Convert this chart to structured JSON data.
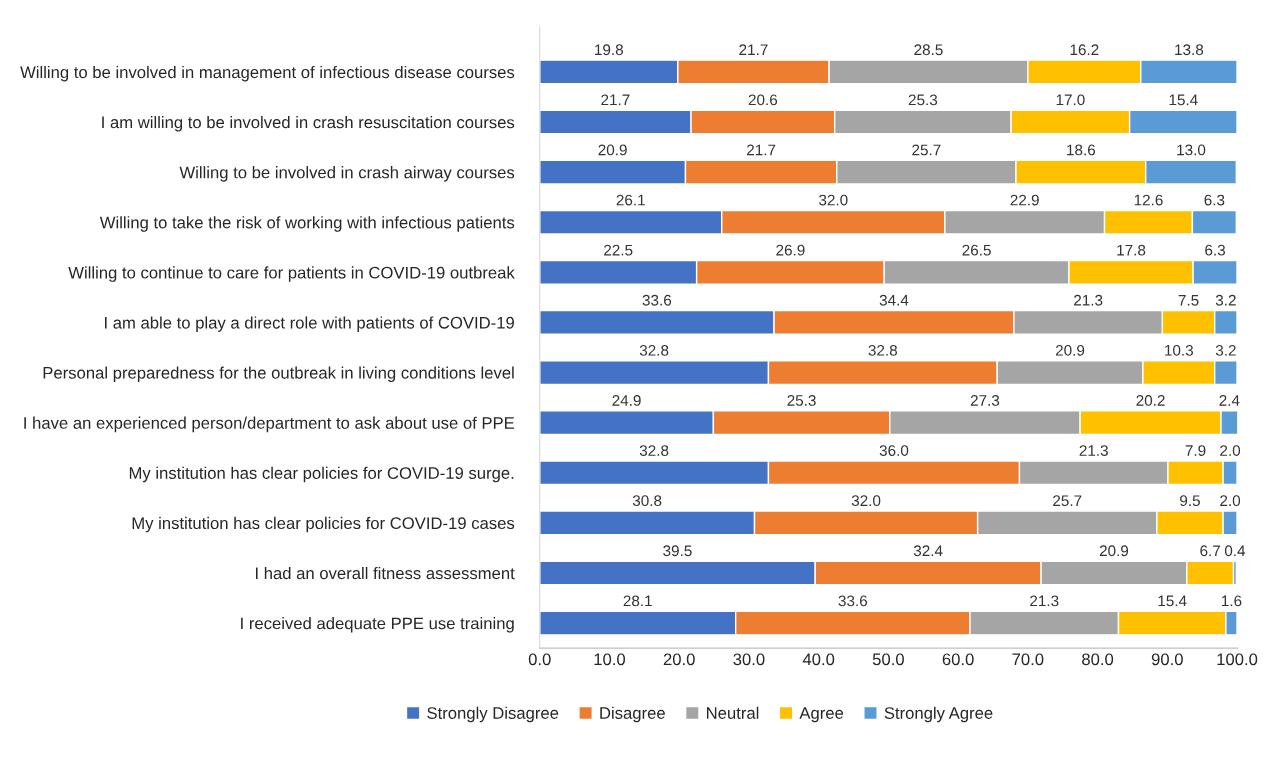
{
  "chart_data": {
    "type": "bar",
    "orientation": "horizontal",
    "stacked": true,
    "categories": [
      "Willing to be involved in management of infectious disease courses",
      "I am willing to be involved in crash resuscitation courses",
      "Willing to be involved in crash airway courses",
      "Willing to take the risk of working with infectious patients",
      "Willing to continue to care for patients in COVID-19 outbreak",
      "I am able to play a direct role with patients of COVID-19",
      "Personal preparedness for the outbreak in living conditions level",
      "I have an experienced person/department to ask about use of PPE",
      "My institution has clear policies for COVID-19 surge.",
      "My institution has clear policies for COVID-19 cases",
      "I had an overall fitness assessment",
      "I received adequate PPE use training"
    ],
    "series": [
      {
        "name": "Strongly Disagree",
        "color": "#4472c4",
        "values": [
          19.8,
          21.7,
          20.9,
          26.1,
          22.5,
          33.6,
          32.8,
          24.9,
          32.8,
          30.8,
          39.5,
          28.1
        ],
        "value_labels": [
          "19.8",
          "21.7",
          "20.9",
          "26.1",
          "22.5",
          "33.6",
          "32.8",
          "24.9",
          "32.8",
          "30.8",
          "39.5",
          "28.1"
        ]
      },
      {
        "name": "Disagree",
        "color": "#ed7d31",
        "values": [
          21.7,
          20.6,
          21.7,
          32.0,
          26.9,
          34.4,
          32.8,
          25.3,
          36.0,
          32.0,
          32.4,
          33.6
        ],
        "value_labels": [
          "21.7",
          "20.6",
          "21.7",
          "32.0",
          "26.9",
          "34.4",
          "32.8",
          "25.3",
          "36.0",
          "32.0",
          "32.4",
          "33.6"
        ]
      },
      {
        "name": "Neutral",
        "color": "#a5a5a5",
        "values": [
          28.5,
          25.3,
          25.7,
          22.9,
          26.5,
          21.3,
          20.9,
          27.3,
          21.3,
          25.7,
          20.9,
          21.3
        ],
        "value_labels": [
          "28.5",
          "25.3",
          "25.7",
          "22.9",
          "26.5",
          "21.3",
          "20.9",
          "27.3",
          "21.3",
          "25.7",
          "20.9",
          "21.3"
        ]
      },
      {
        "name": "Agree",
        "color": "#ffc000",
        "values": [
          16.2,
          17.0,
          18.6,
          12.6,
          17.8,
          7.5,
          10.3,
          20.2,
          7.9,
          9.5,
          6.7,
          15.4
        ],
        "value_labels": [
          "16.2",
          "17.0",
          "18.6",
          "12.6",
          "17.8",
          "7.5",
          "10.3",
          "20.2",
          "7.9",
          "9.5",
          "6.7",
          "15.4"
        ]
      },
      {
        "name": "Strongly Agree",
        "color": "#5b9bd5",
        "values": [
          13.8,
          15.4,
          13.0,
          6.3,
          6.3,
          3.2,
          3.2,
          2.4,
          2.0,
          2.0,
          0.4,
          1.6
        ],
        "value_labels": [
          "13.8",
          "15.4",
          "13.0",
          "6.3",
          "6.3",
          "3.2",
          "3.2",
          "2.4",
          "2.0",
          "2.0",
          "0.4",
          "1.6"
        ]
      }
    ],
    "xlim": [
      0,
      100.1
    ],
    "xticks": [
      {
        "value": 0,
        "label": "0.0"
      },
      {
        "value": 10,
        "label": "10.0"
      },
      {
        "value": 20,
        "label": "20.0"
      },
      {
        "value": 30,
        "label": "30.0"
      },
      {
        "value": 40,
        "label": "40.0"
      },
      {
        "value": 50,
        "label": "50.0"
      },
      {
        "value": 60,
        "label": "60.0"
      },
      {
        "value": 70,
        "label": "70.0"
      },
      {
        "value": 80,
        "label": "80.0"
      },
      {
        "value": 90,
        "label": "90.0"
      },
      {
        "value": 100,
        "label": "100.0"
      }
    ],
    "grid": false,
    "legend": "bottom"
  }
}
